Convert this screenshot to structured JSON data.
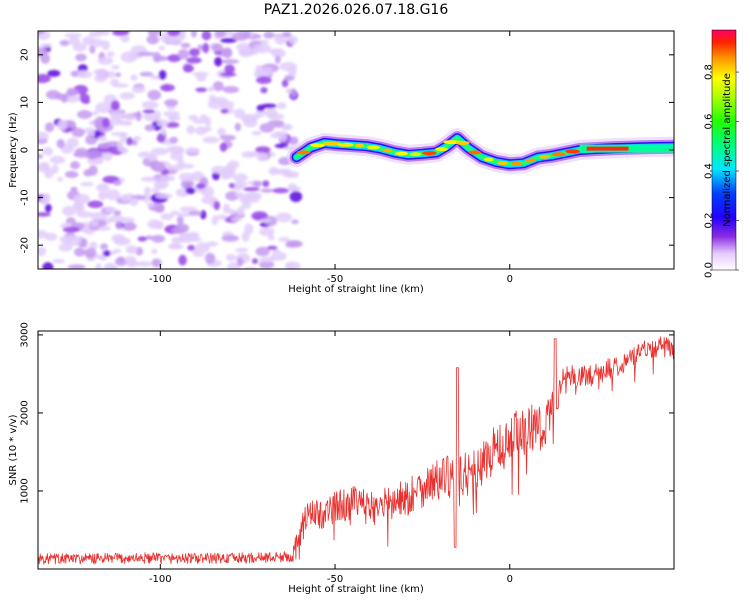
{
  "title": "PAZ1.2026.026.07.18.G16",
  "chart_data": [
    {
      "type": "heatmap",
      "xlabel": "Height of straight line (km)",
      "ylabel": "Frequency (Hz)",
      "xlim": [
        -135,
        47
      ],
      "ylim": [
        -25,
        25
      ],
      "xticks": [
        -100,
        -50,
        0
      ],
      "xtick_labels": [
        "-100",
        "-50",
        "0"
      ],
      "yticks": [
        -20,
        -10,
        0,
        10,
        20
      ],
      "ytick_labels": [
        "-20",
        "-10",
        "0",
        "10",
        "20"
      ],
      "noise_region_x": [
        -135,
        -61
      ],
      "ridge": {
        "x": [
          -61,
          -57,
          -53,
          -49,
          -45,
          -41,
          -37,
          -33,
          -29,
          -25,
          -21,
          -18,
          -15,
          -12,
          -8,
          -4,
          0,
          4,
          8,
          12,
          16,
          20,
          25,
          30,
          35,
          40,
          47
        ],
        "freq_hz": [
          -1.5,
          0.5,
          1.5,
          1.2,
          1,
          0.8,
          0.3,
          -0.5,
          -1.0,
          -0.8,
          -0.5,
          0.8,
          2.5,
          0.5,
          -1.5,
          -2.5,
          -3.0,
          -2.8,
          -1.6,
          -1.2,
          -0.6,
          0,
          0.2,
          0.4,
          0.5,
          0.6,
          0.7
        ]
      },
      "colorbar": {
        "label": "Normalized spectral amplitude",
        "ticks": [
          0.0,
          0.2,
          0.4,
          0.6,
          0.8
        ],
        "tick_labels": [
          "0.0",
          "0.2",
          "0.4",
          "0.6",
          "0.8"
        ],
        "range": [
          0,
          0.97
        ]
      }
    },
    {
      "type": "line",
      "xlabel": "Height of straight line (km)",
      "ylabel": "SNR (10 * v/v)",
      "xlim": [
        -135,
        47
      ],
      "ylim": [
        0,
        3050
      ],
      "xticks": [
        -100,
        -50,
        0
      ],
      "xtick_labels": [
        "-100",
        "-50",
        "0"
      ],
      "yticks": [
        1000,
        2000,
        3000
      ],
      "ytick_labels": [
        "1000",
        "2000",
        "3000"
      ],
      "series": [
        {
          "name": "SNR",
          "color": "#e8302e",
          "x": [
            -135,
            -120,
            -105,
            -90,
            -75,
            -62,
            -60,
            -58,
            -57,
            -55,
            -50,
            -45,
            -40,
            -35,
            -30,
            -25,
            -20,
            -15,
            -10,
            -5,
            0,
            5,
            10,
            13,
            15,
            20,
            25,
            30,
            35,
            40,
            45,
            47
          ],
          "values": [
            130,
            130,
            140,
            135,
            140,
            160,
            450,
            700,
            720,
            680,
            800,
            850,
            780,
            820,
            900,
            1050,
            1150,
            1200,
            1250,
            1500,
            1650,
            1800,
            1850,
            1950,
            2500,
            2450,
            2500,
            2600,
            2700,
            2850,
            2850,
            2750
          ]
        }
      ]
    }
  ]
}
